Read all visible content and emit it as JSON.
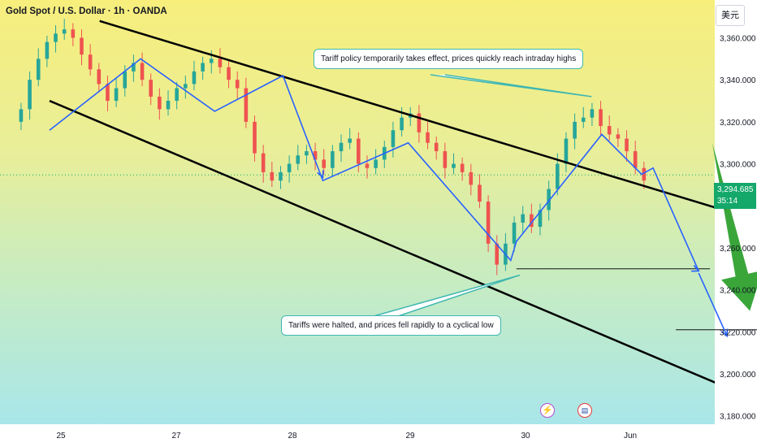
{
  "header": {
    "title": "Gold Spot / U.S. Dollar · 1h · OANDA",
    "currency": "美元"
  },
  "price_tag": {
    "price": "3,294.685",
    "countdown": "35:14"
  },
  "annotations": {
    "top": "Tariff policy temporarily takes effect, prices quickly reach intraday highs",
    "bottom": "Tariffs were halted, and prices fell rapidly to a cyclical low"
  },
  "icons": [
    "lightning-icon",
    "us-flag-icon"
  ],
  "colors": {
    "up": "#26a69a",
    "down": "#ef5350",
    "path": "#2962ff",
    "arrow": "#3aa63a",
    "channel": "#000000"
  },
  "chart_data": {
    "type": "candlestick",
    "title": "Gold Spot / U.S. Dollar · 1h · OANDA",
    "x_ticks": [
      "25",
      "27",
      "28",
      "29",
      "30",
      "Jun"
    ],
    "y_ticks": [
      "3,360.000",
      "3,340.000",
      "3,320.000",
      "3,300.000",
      "3,280.000",
      "3,260.000",
      "3,240.000",
      "3,220.000",
      "3,200.000",
      "3,180.000"
    ],
    "ylim": [
      3176,
      3378
    ],
    "last_price": 3294.685,
    "levels": [
      3250,
      3221
    ],
    "channel": {
      "upper": [
        [
          0.34,
          3368
        ],
        [
          6.0,
          3275
        ]
      ],
      "lower": [
        [
          -0.1,
          3330
        ],
        [
          6.0,
          3190
        ]
      ]
    },
    "candles_close": [
      3326,
      3340,
      3350,
      3358,
      3362,
      3364,
      3360,
      3352,
      3345,
      3338,
      3330,
      3336,
      3344,
      3348,
      3340,
      3332,
      3326,
      3330,
      3336,
      3338,
      3344,
      3348,
      3350,
      3346,
      3340,
      3336,
      3320,
      3305,
      3296,
      3292,
      3296,
      3300,
      3304,
      3306,
      3302,
      3298,
      3306,
      3310,
      3312,
      3300,
      3298,
      3302,
      3308,
      3316,
      3322,
      3324,
      3315,
      3310,
      3306,
      3298,
      3300,
      3296,
      3290,
      3282,
      3262,
      3252,
      3262,
      3272,
      3276,
      3270,
      3278,
      3288,
      3300,
      3312,
      3320,
      3322,
      3326,
      3318,
      3314,
      3312,
      3306,
      3298,
      3292
    ],
    "path": [
      [
        -0.1,
        3316
      ],
      [
        0.7,
        3350
      ],
      [
        1.35,
        3325
      ],
      [
        1.95,
        3342
      ],
      [
        2.3,
        3292
      ],
      [
        3.05,
        3310
      ],
      [
        3.95,
        3254
      ],
      [
        4.0,
        3263
      ],
      [
        4.75,
        3314
      ],
      [
        5.1,
        3295
      ],
      [
        5.2,
        3298
      ],
      [
        5.6,
        3249
      ]
    ],
    "projection": [
      [
        5.6,
        3248
      ],
      [
        5.85,
        3218
      ]
    ],
    "big_arrow": [
      [
        5.72,
        3310
      ],
      [
        6.05,
        3230
      ]
    ]
  }
}
